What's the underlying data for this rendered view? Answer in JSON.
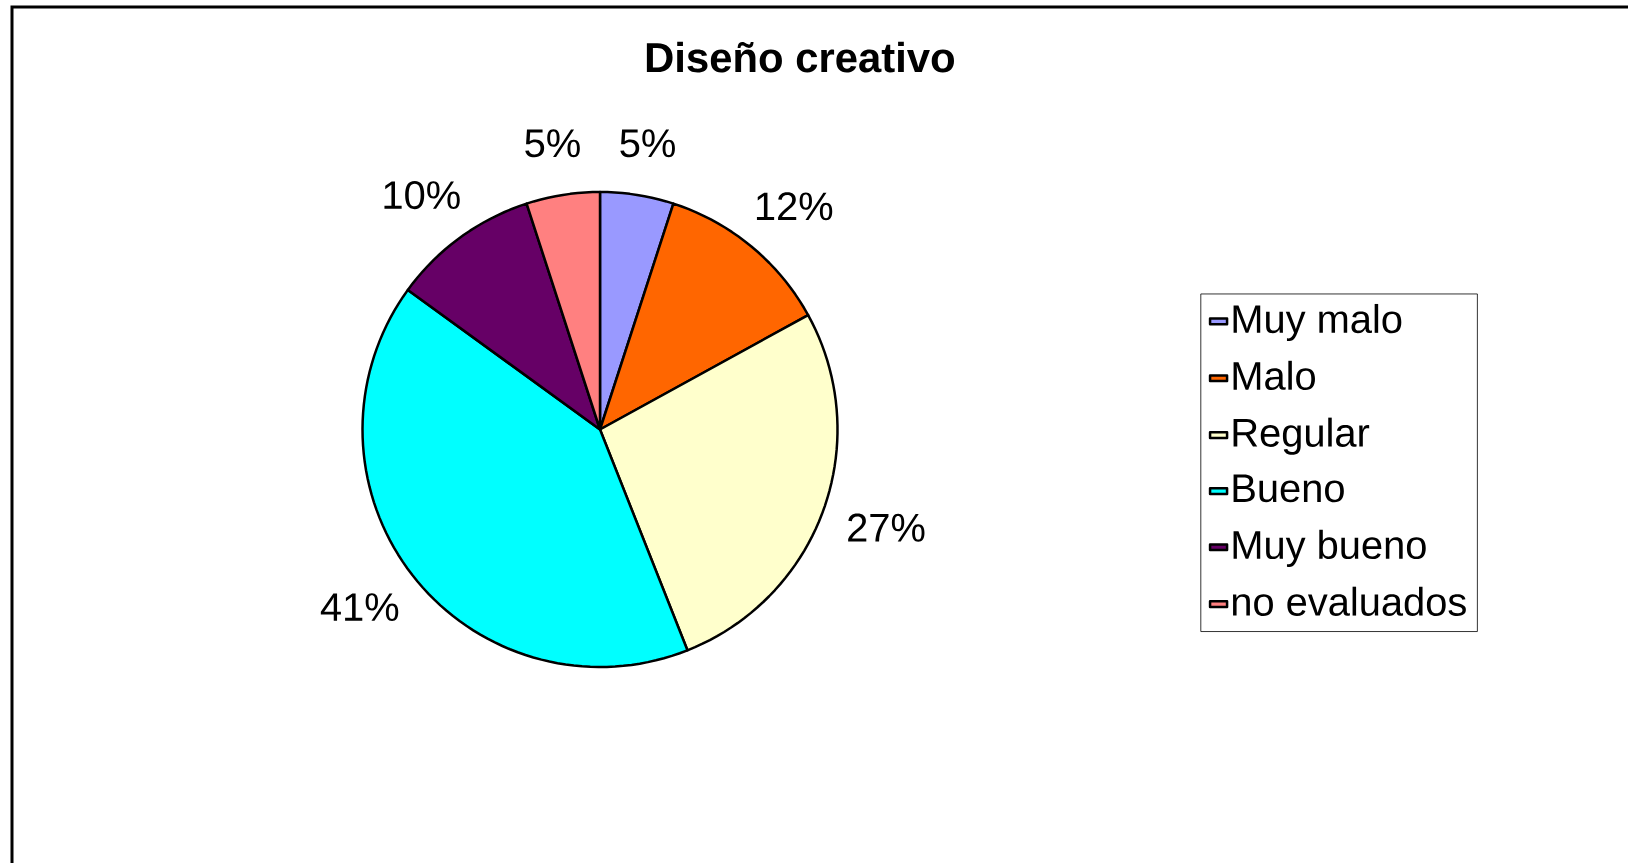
{
  "chart_data": {
    "type": "pie",
    "title": "Diseño creativo",
    "categories": [
      "Muy malo",
      "Malo",
      "Regular",
      "Bueno",
      "Muy bueno",
      "no evaluados"
    ],
    "values": [
      5,
      12,
      27,
      41,
      10,
      5
    ],
    "value_labels": [
      "5%",
      "12%",
      "27%",
      "41%",
      "10%",
      "5%"
    ],
    "colors": [
      "#9999ff",
      "#ff6600",
      "#ffffcc",
      "#00ffff",
      "#660066",
      "#ff8080"
    ],
    "legend": "right"
  }
}
